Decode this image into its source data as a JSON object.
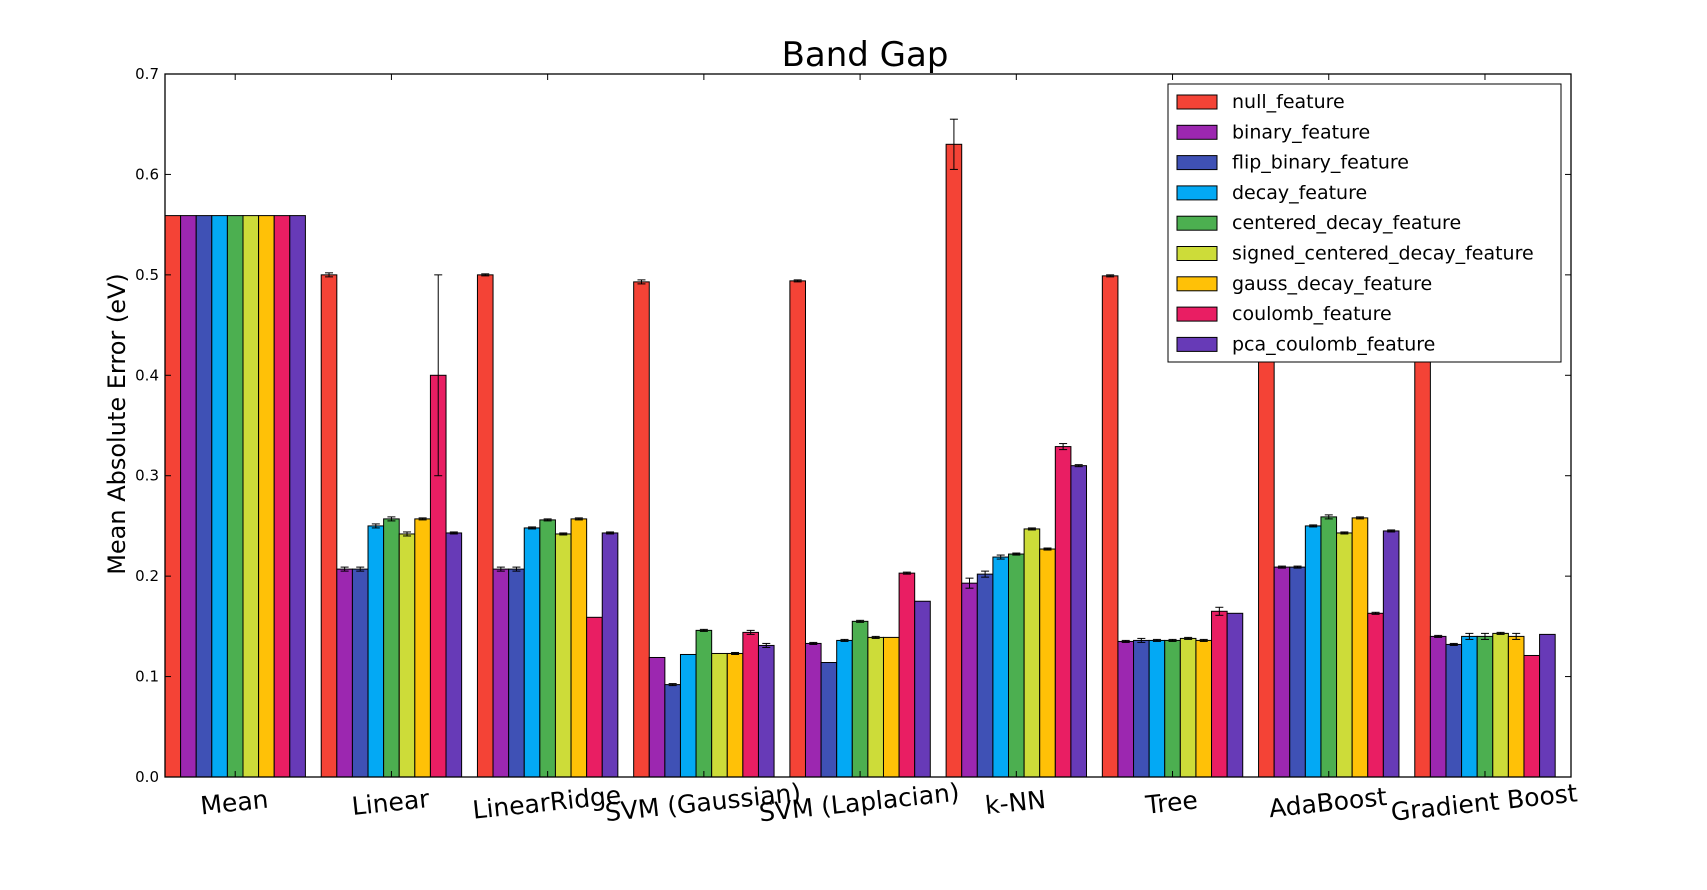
{
  "chart_data": {
    "type": "bar",
    "title": "Band Gap",
    "xlabel": "",
    "ylabel": "Mean Absolute Error (eV)",
    "ylim": [
      0,
      0.7
    ],
    "yticks": [
      "0.0",
      "0.1",
      "0.2",
      "0.3",
      "0.4",
      "0.5",
      "0.6",
      "0.7"
    ],
    "grid": false,
    "legend_position": "top-right",
    "categories": [
      "Mean",
      "Linear",
      "LinearRidge",
      "SVM (Gaussian)",
      "SVM (Laplacian)",
      "k-NN",
      "Tree",
      "AdaBoost",
      "Gradient Boost"
    ],
    "series": [
      {
        "name": "null_feature",
        "color": "#f44336",
        "values": [
          0.559,
          0.5,
          0.5,
          0.493,
          0.494,
          0.63,
          0.499,
          0.44,
          0.44
        ],
        "errors": [
          0,
          0.002,
          0.001,
          0.002,
          0.001,
          0.025,
          0.001,
          0,
          0
        ]
      },
      {
        "name": "binary_feature",
        "color": "#9c27b0",
        "values": [
          0.559,
          0.207,
          0.207,
          0.119,
          0.133,
          0.193,
          0.135,
          0.209,
          0.14
        ],
        "errors": [
          0,
          0.002,
          0.002,
          0,
          0.001,
          0.005,
          0.001,
          0.001,
          0.001
        ]
      },
      {
        "name": "flip_binary_feature",
        "color": "#3f51b5",
        "values": [
          0.559,
          0.207,
          0.207,
          0.092,
          0.114,
          0.202,
          0.136,
          0.209,
          0.132
        ],
        "errors": [
          0,
          0.002,
          0.002,
          0.001,
          0,
          0.003,
          0.002,
          0.001,
          0.001
        ]
      },
      {
        "name": "decay_feature",
        "color": "#03a9f4",
        "values": [
          0.559,
          0.25,
          0.248,
          0.122,
          0.136,
          0.219,
          0.136,
          0.25,
          0.14
        ],
        "errors": [
          0,
          0.002,
          0.001,
          0,
          0.001,
          0.002,
          0.001,
          0.001,
          0.003
        ]
      },
      {
        "name": "centered_decay_feature",
        "color": "#4caf50",
        "values": [
          0.559,
          0.257,
          0.256,
          0.146,
          0.155,
          0.222,
          0.136,
          0.259,
          0.14
        ],
        "errors": [
          0,
          0.002,
          0.001,
          0.001,
          0.001,
          0.001,
          0.001,
          0.002,
          0.003
        ]
      },
      {
        "name": "signed_centered_decay_feature",
        "color": "#cddc39",
        "values": [
          0.559,
          0.242,
          0.242,
          0.123,
          0.139,
          0.247,
          0.138,
          0.243,
          0.143
        ],
        "errors": [
          0,
          0.002,
          0.001,
          0,
          0.001,
          0.001,
          0.001,
          0.001,
          0.001
        ]
      },
      {
        "name": "gauss_decay_feature",
        "color": "#ffc107",
        "values": [
          0.559,
          0.257,
          0.257,
          0.123,
          0.139,
          0.227,
          0.136,
          0.258,
          0.14
        ],
        "errors": [
          0,
          0.001,
          0.001,
          0.001,
          0,
          0.001,
          0.001,
          0.001,
          0.003
        ]
      },
      {
        "name": "coulomb_feature",
        "color": "#e91e63",
        "values": [
          0.559,
          0.4,
          0.159,
          0.144,
          0.203,
          0.329,
          0.165,
          0.163,
          0.121
        ],
        "errors": [
          0,
          0.1,
          0,
          0.002,
          0.001,
          0.003,
          0.004,
          0.001,
          0
        ]
      },
      {
        "name": "pca_coulomb_feature",
        "color": "#673ab7",
        "values": [
          0.559,
          0.243,
          0.243,
          0.131,
          0.175,
          0.31,
          0.163,
          0.245,
          0.142
        ],
        "errors": [
          0,
          0.001,
          0.001,
          0.002,
          0,
          0.001,
          0,
          0.001,
          0
        ]
      }
    ]
  }
}
